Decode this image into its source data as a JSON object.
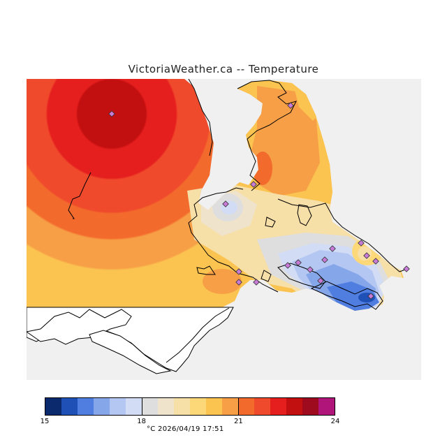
{
  "title": "VictoriaWeather.ca -- Temperature",
  "legend": {
    "colors": [
      "#0b2a6e",
      "#1f50b5",
      "#4f7ee0",
      "#86a6ea",
      "#b4c6f2",
      "#d3dcf5",
      "#dedede",
      "#efe3cb",
      "#f7dfa8",
      "#fdd879",
      "#fbc350",
      "#f79f46",
      "#f36b2c",
      "#f04a2c",
      "#e51e1e",
      "#c20f0f",
      "#9e0b1f",
      "#b0157a"
    ],
    "ticks": [
      {
        "label": "15",
        "pos": 0
      },
      {
        "label": "18",
        "pos": 6
      },
      {
        "label": "21",
        "pos": 12
      },
      {
        "label": "24",
        "pos": 18
      }
    ]
  },
  "footer": "°C  2026/04/19 17:51"
}
